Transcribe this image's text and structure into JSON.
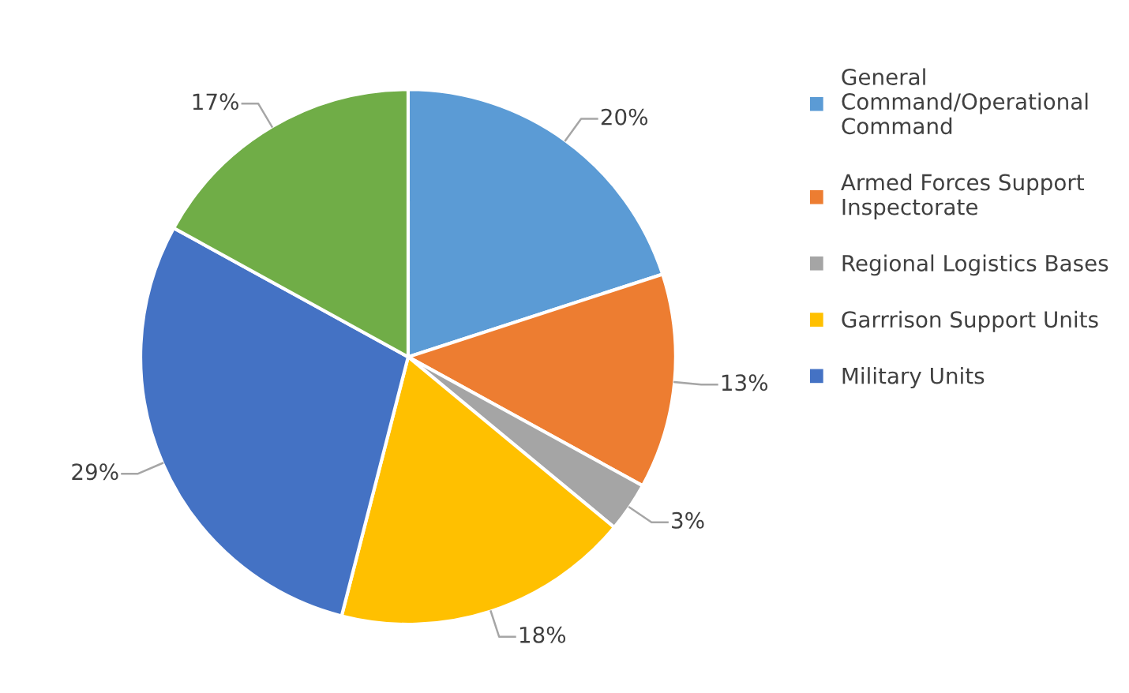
{
  "chart_data": {
    "type": "pie",
    "categories": [
      "General\nCommand/Operational\nCommand",
      "Armed Forces Support\nInspectorate",
      "Regional Logistics Bases",
      "Garrrison Support Units",
      "Military Units",
      null
    ],
    "values": [
      20,
      13,
      3,
      18,
      29,
      17
    ],
    "colors": [
      "#5b9bd5",
      "#ed7d31",
      "#a5a5a5",
      "#ffc000",
      "#4472c4",
      "#70ad47"
    ],
    "value_labels": [
      "20%",
      "13%",
      "3%",
      "18%",
      "29%",
      "17%"
    ],
    "legend": "right"
  }
}
